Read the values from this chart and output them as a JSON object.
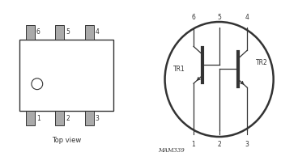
{
  "line_color": "#333333",
  "pin_color": "#aaaaaa",
  "top_view_label": "Top view",
  "schematic_label": "MAM339",
  "tr1_label": "TR1",
  "tr2_label": "TR2",
  "figsize": [
    3.47,
    1.99
  ],
  "dpi": 100
}
